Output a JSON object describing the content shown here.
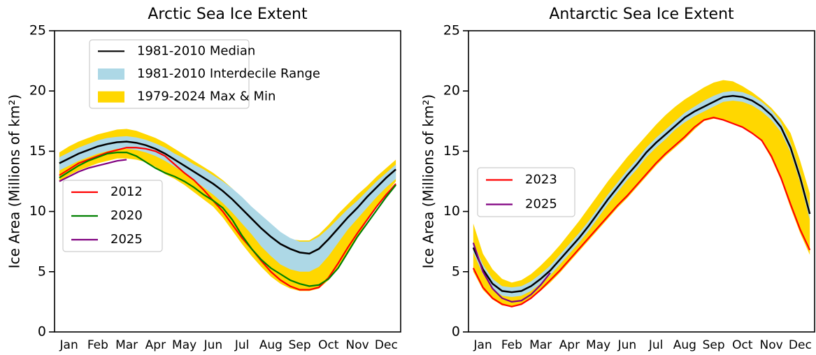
{
  "chart_data": [
    {
      "type": "line",
      "title": "Arctic Sea Ice Extent",
      "y_label": "Ice Area (Millions of km²)",
      "categories": [
        null,
        "Jan",
        null,
        null,
        "Feb",
        null,
        null,
        "Mar",
        null,
        null,
        "Apr",
        null,
        null,
        "May",
        null,
        null,
        "Jun",
        null,
        null,
        "Jul",
        null,
        null,
        "Aug",
        null,
        null,
        "Sep",
        null,
        null,
        "Oct",
        null,
        null,
        "Nov",
        null,
        null,
        "Dec",
        null
      ],
      "ylim": [
        0,
        25
      ],
      "yticks": [
        0,
        5,
        10,
        15,
        20,
        25
      ],
      "bands": [
        {
          "name": "1979-2024 Max & Min",
          "color": "#ffd700",
          "lower": [
            12.5,
            13.0,
            13.4,
            13.7,
            14.0,
            14.2,
            14.4,
            14.4,
            14.3,
            14.1,
            13.7,
            13.1,
            12.7,
            12.2,
            11.6,
            11.0,
            10.4,
            9.5,
            8.4,
            7.3,
            6.3,
            5.4,
            4.6,
            4.0,
            3.6,
            3.4,
            3.4,
            3.6,
            4.3,
            5.4,
            6.6,
            7.9,
            9.2,
            10.4,
            11.5,
            12.5
          ],
          "upper": [
            14.9,
            15.4,
            15.8,
            16.1,
            16.4,
            16.6,
            16.8,
            16.85,
            16.7,
            16.4,
            16.1,
            15.7,
            15.2,
            14.7,
            14.2,
            13.7,
            13.2,
            12.6,
            11.9,
            11.1,
            10.3,
            9.5,
            8.7,
            8.0,
            7.7,
            7.6,
            7.6,
            8.1,
            8.9,
            9.8,
            10.6,
            11.4,
            12.1,
            12.9,
            13.6,
            14.3
          ]
        },
        {
          "name": "1981-2010 Interdecile Range",
          "color": "#add8e6",
          "lower": [
            13.4,
            13.8,
            14.2,
            14.5,
            14.8,
            15.0,
            15.2,
            15.2,
            15.1,
            14.9,
            14.6,
            14.2,
            13.7,
            13.2,
            12.6,
            12.0,
            11.4,
            10.7,
            9.9,
            9.0,
            8.1,
            7.1,
            6.3,
            5.6,
            5.2,
            5.0,
            5.0,
            5.4,
            6.3,
            7.4,
            8.5,
            9.4,
            10.3,
            11.2,
            12.0,
            12.7
          ],
          "upper": [
            14.5,
            14.9,
            15.3,
            15.6,
            15.9,
            16.1,
            16.2,
            16.25,
            16.15,
            15.95,
            15.65,
            15.3,
            14.8,
            14.4,
            13.9,
            13.5,
            13.0,
            12.5,
            11.9,
            11.2,
            10.4,
            9.7,
            9.0,
            8.3,
            7.8,
            7.5,
            7.5,
            7.9,
            8.6,
            9.4,
            10.2,
            10.9,
            11.7,
            12.5,
            13.2,
            13.9
          ]
        }
      ],
      "median": {
        "name": "1981-2010 Median",
        "color": "#000000",
        "values": [
          14.0,
          14.4,
          14.8,
          15.1,
          15.4,
          15.6,
          15.75,
          15.8,
          15.7,
          15.5,
          15.2,
          14.8,
          14.3,
          13.8,
          13.3,
          12.8,
          12.3,
          11.7,
          11.0,
          10.2,
          9.4,
          8.6,
          7.9,
          7.3,
          6.9,
          6.6,
          6.5,
          6.9,
          7.7,
          8.6,
          9.5,
          10.3,
          11.2,
          12.0,
          12.8,
          13.5
        ]
      },
      "series": [
        {
          "name": "2012",
          "color": "#ff0000",
          "values": [
            13.0,
            13.5,
            14.0,
            14.3,
            14.6,
            14.9,
            15.1,
            15.3,
            15.3,
            15.2,
            15.0,
            14.6,
            13.9,
            13.2,
            12.6,
            11.8,
            10.9,
            10.0,
            8.9,
            7.8,
            6.9,
            5.9,
            5.0,
            4.3,
            3.8,
            3.5,
            3.5,
            3.7,
            4.5,
            5.7,
            7.0,
            8.2,
            9.3,
            10.4,
            11.4,
            12.3
          ]
        },
        {
          "name": "2020",
          "color": "#008000",
          "values": [
            12.8,
            13.3,
            13.8,
            14.2,
            14.5,
            14.8,
            14.9,
            14.9,
            14.6,
            14.1,
            13.6,
            13.2,
            12.9,
            12.5,
            12.0,
            11.4,
            10.9,
            10.3,
            9.3,
            8.0,
            6.9,
            6.0,
            5.3,
            4.8,
            4.3,
            4.0,
            3.8,
            3.9,
            4.4,
            5.3,
            6.6,
            7.9,
            9.0,
            10.1,
            11.2,
            12.2
          ]
        },
        {
          "name": "2025",
          "color": "#800080",
          "values": [
            12.5,
            12.9,
            13.3,
            13.6,
            13.8,
            14.0,
            14.2,
            14.3,
            null,
            null,
            null,
            null,
            null,
            null,
            null,
            null,
            null,
            null,
            null,
            null,
            null,
            null,
            null,
            null,
            null,
            null,
            null,
            null,
            null,
            null,
            null,
            null,
            null,
            null,
            null,
            null
          ]
        }
      ]
    },
    {
      "type": "line",
      "title": "Antarctic Sea Ice Extent",
      "y_label": "Ice Area (Millions of km²)",
      "categories": [
        null,
        "Jan",
        null,
        null,
        "Feb",
        null,
        null,
        "Mar",
        null,
        null,
        "Apr",
        null,
        null,
        "May",
        null,
        null,
        "Jun",
        null,
        null,
        "Jul",
        null,
        null,
        "Aug",
        null,
        null,
        "Sep",
        null,
        null,
        "Oct",
        null,
        null,
        "Nov",
        null,
        null,
        "Dec",
        null
      ],
      "ylim": [
        0,
        25
      ],
      "yticks": [
        0,
        5,
        10,
        15,
        20,
        25
      ],
      "bands": [
        {
          "color": "#ffd700",
          "lower": [
            5.0,
            3.5,
            2.7,
            2.2,
            2.1,
            2.3,
            2.8,
            3.4,
            4.1,
            4.9,
            5.8,
            6.7,
            7.6,
            8.5,
            9.4,
            10.3,
            11.1,
            12.0,
            12.9,
            13.8,
            14.6,
            15.3,
            16.0,
            16.8,
            17.5,
            17.7,
            17.6,
            17.3,
            17.0,
            16.5,
            15.8,
            14.4,
            12.6,
            10.3,
            8.2,
            6.4
          ],
          "upper": [
            9.0,
            6.5,
            5.2,
            4.4,
            4.1,
            4.3,
            4.8,
            5.5,
            6.3,
            7.2,
            8.2,
            9.2,
            10.3,
            11.4,
            12.5,
            13.5,
            14.5,
            15.4,
            16.3,
            17.2,
            18.0,
            18.7,
            19.3,
            19.8,
            20.3,
            20.7,
            20.9,
            20.8,
            20.4,
            19.9,
            19.3,
            18.6,
            17.7,
            16.5,
            14.2,
            11.5
          ]
        },
        {
          "color": "#add8e6",
          "lower": [
            6.6,
            4.8,
            3.6,
            3.0,
            2.9,
            3.0,
            3.4,
            4.0,
            4.7,
            5.6,
            6.5,
            7.4,
            8.4,
            9.5,
            10.6,
            11.6,
            12.6,
            13.5,
            14.5,
            15.3,
            16.0,
            16.8,
            17.4,
            17.9,
            18.3,
            18.7,
            19.1,
            19.2,
            19.1,
            18.8,
            18.3,
            17.6,
            16.6,
            14.9,
            12.4,
            9.3
          ],
          "upper": [
            7.4,
            5.6,
            4.4,
            3.8,
            3.7,
            3.8,
            4.2,
            4.8,
            5.5,
            6.4,
            7.3,
            8.2,
            9.2,
            10.3,
            11.4,
            12.4,
            13.4,
            14.3,
            15.3,
            16.1,
            16.8,
            17.5,
            18.2,
            18.7,
            19.2,
            19.6,
            19.9,
            20.0,
            19.9,
            19.6,
            19.1,
            18.4,
            17.4,
            15.7,
            13.2,
            10.3
          ]
        }
      ],
      "median": {
        "color": "#000000",
        "values": [
          7.0,
          5.2,
          4.0,
          3.4,
          3.3,
          3.4,
          3.8,
          4.4,
          5.1,
          6.0,
          6.9,
          7.8,
          8.8,
          9.9,
          11.0,
          12.0,
          13.0,
          13.9,
          14.9,
          15.7,
          16.4,
          17.1,
          17.8,
          18.3,
          18.7,
          19.1,
          19.5,
          19.6,
          19.5,
          19.2,
          18.7,
          18.0,
          17.0,
          15.3,
          12.8,
          9.8
        ]
      },
      "series": [
        {
          "name": "2023",
          "color": "#ff0000",
          "values": [
            5.3,
            3.7,
            2.8,
            2.3,
            2.1,
            2.3,
            2.8,
            3.5,
            4.3,
            5.1,
            6.0,
            6.9,
            7.8,
            8.7,
            9.6,
            10.5,
            11.3,
            12.2,
            13.1,
            14.0,
            14.8,
            15.5,
            16.2,
            17.0,
            17.6,
            17.8,
            17.6,
            17.3,
            17.0,
            16.5,
            15.9,
            14.6,
            12.8,
            10.6,
            8.5,
            6.8
          ]
        },
        {
          "name": "2025",
          "color": "#800080",
          "values": [
            7.4,
            5.0,
            3.6,
            2.8,
            2.5,
            2.6,
            3.1,
            3.9,
            4.9,
            null,
            null,
            null,
            null,
            null,
            null,
            null,
            null,
            null,
            null,
            null,
            null,
            null,
            null,
            null,
            null,
            null,
            null,
            null,
            null,
            null,
            null,
            null,
            null,
            null,
            null,
            null
          ]
        }
      ]
    }
  ]
}
